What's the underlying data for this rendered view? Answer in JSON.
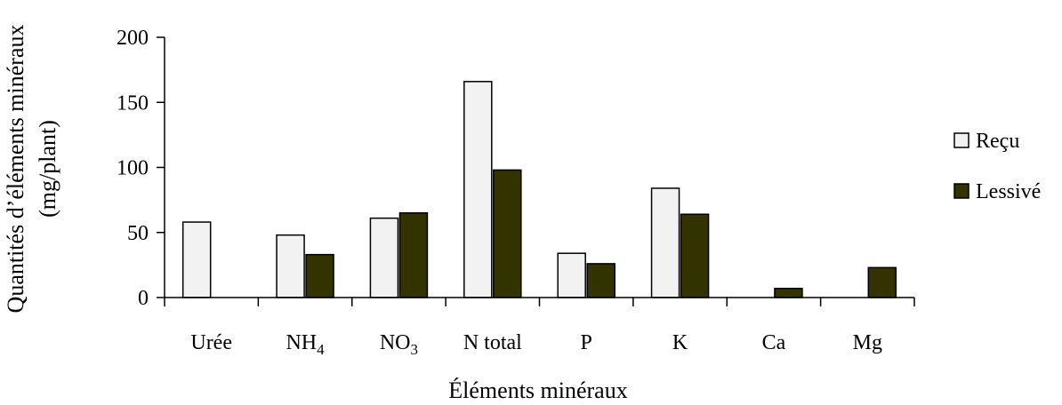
{
  "chart_data": {
    "type": "bar",
    "xlabel": "Éléments minéraux",
    "ylabel_line1": "Quantités d’éléments minéraux",
    "ylabel_line2": "(mg/plant)",
    "ylim": [
      0,
      200
    ],
    "yticks": [
      "0",
      "50",
      "100",
      "150",
      "200"
    ],
    "categories": [
      {
        "label": "Urée",
        "sub": ""
      },
      {
        "label": "NH",
        "sub": "4"
      },
      {
        "label": "NO",
        "sub": "3"
      },
      {
        "label": "N total",
        "sub": ""
      },
      {
        "label": "P",
        "sub": ""
      },
      {
        "label": "K",
        "sub": ""
      },
      {
        "label": "Ca",
        "sub": ""
      },
      {
        "label": "Mg",
        "sub": ""
      }
    ],
    "series": [
      {
        "name": "Reçu",
        "color": "#f2f2f2",
        "values": [
          58,
          48,
          61,
          166,
          34,
          84,
          0,
          0
        ]
      },
      {
        "name": "Lessivé",
        "color": "#333300",
        "values": [
          0,
          33,
          65,
          98,
          26,
          64,
          7,
          23
        ]
      }
    ],
    "legend_position": "right",
    "grid": false
  }
}
